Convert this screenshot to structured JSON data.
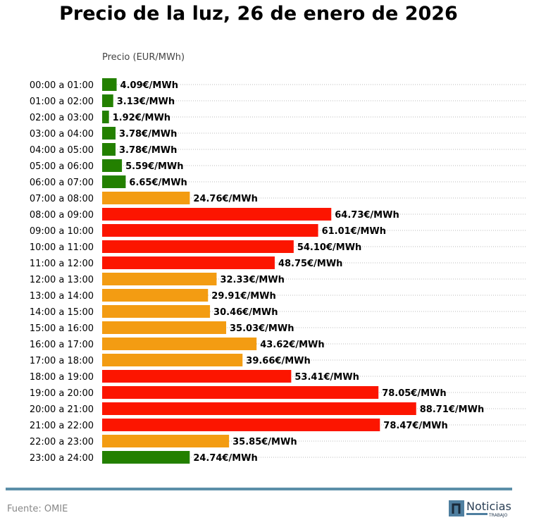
{
  "chart_data": {
    "type": "bar",
    "orientation": "horizontal",
    "title": "Precio de la luz, 26 de enero de 2026",
    "xlabel": "Precio (EUR/MWh)",
    "xlim": [
      0,
      120
    ],
    "grid": "horizontal dotted",
    "categories": [
      "00:00 a 01:00",
      "01:00 a 02:00",
      "02:00 a 03:00",
      "03:00 a 04:00",
      "04:00 a 05:00",
      "05:00 a 06:00",
      "06:00 a 07:00",
      "07:00 a 08:00",
      "08:00 a 09:00",
      "09:00 a 10:00",
      "10:00 a 11:00",
      "11:00 a 12:00",
      "12:00 a 13:00",
      "13:00 a 14:00",
      "14:00 a 15:00",
      "15:00 a 16:00",
      "16:00 a 17:00",
      "17:00 a 18:00",
      "18:00 a 19:00",
      "19:00 a 20:00",
      "20:00 a 21:00",
      "21:00 a 22:00",
      "22:00 a 23:00",
      "23:00 a 24:00"
    ],
    "values": [
      4.09,
      3.13,
      1.92,
      3.78,
      3.78,
      5.59,
      6.65,
      24.76,
      64.73,
      61.01,
      54.1,
      48.75,
      32.33,
      29.91,
      30.46,
      35.03,
      43.62,
      39.66,
      53.41,
      78.05,
      88.71,
      78.47,
      35.85,
      24.74
    ],
    "data_labels": [
      "4.09€/MWh",
      "3.13€/MWh",
      "1.92€/MWh",
      "3.78€/MWh",
      "3.78€/MWh",
      "5.59€/MWh",
      "6.65€/MWh",
      "24.76€/MWh",
      "64.73€/MWh",
      "61.01€/MWh",
      "54.10€/MWh",
      "48.75€/MWh",
      "32.33€/MWh",
      "29.91€/MWh",
      "30.46€/MWh",
      "35.03€/MWh",
      "43.62€/MWh",
      "39.66€/MWh",
      "53.41€/MWh",
      "78.05€/MWh",
      "88.71€/MWh",
      "78.47€/MWh",
      "35.85€/MWh",
      "24.74€/MWh"
    ],
    "bar_colors": [
      "#238000",
      "#238000",
      "#238000",
      "#238000",
      "#238000",
      "#238000",
      "#238000",
      "#f39c12",
      "#fc1500",
      "#fc1500",
      "#fc1500",
      "#fc1500",
      "#f39c12",
      "#f39c12",
      "#f39c12",
      "#f39c12",
      "#f39c12",
      "#f39c12",
      "#fc1500",
      "#fc1500",
      "#fc1500",
      "#fc1500",
      "#f39c12",
      "#238000"
    ]
  },
  "footer": {
    "source": "Fuente: OMIE",
    "logo_text": "Noticias",
    "logo_subtext": "TRABAJO",
    "accent_color": "#5b8fa8"
  }
}
